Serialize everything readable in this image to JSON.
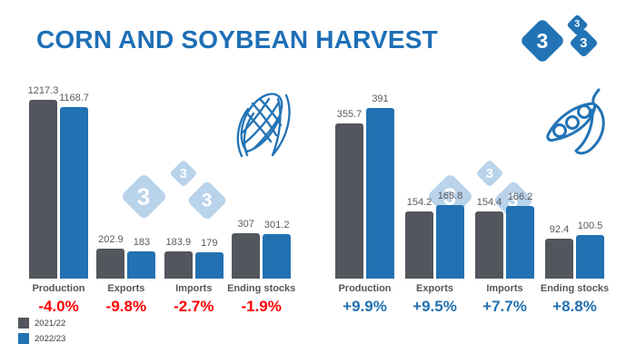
{
  "header": {
    "title": "CORN AND SOYBEAN HARVEST"
  },
  "logo": {
    "digit": "3",
    "color": "#2273B5"
  },
  "watermark": {
    "digit": "3",
    "color": "#B9D3EB"
  },
  "legend": {
    "items": [
      {
        "label": "2021/22",
        "color": "#53565C"
      },
      {
        "label": "2022/23",
        "color": "#2271B2"
      }
    ]
  },
  "chart_data": [
    {
      "id": "corn",
      "type": "bar",
      "icon": "corn-icon",
      "categories": [
        "Production",
        "Exports",
        "Imports",
        "Ending stocks"
      ],
      "series": [
        {
          "name": "2021/22",
          "color": "#53565C",
          "values": [
            1217.3,
            202.9,
            183.9,
            307
          ]
        },
        {
          "name": "2022/23",
          "color": "#2271B2",
          "values": [
            1168.7,
            183,
            179,
            301.2
          ]
        }
      ],
      "change_labels": [
        "-4.0%",
        "-9.8%",
        "-2.7%",
        "-1.9%"
      ],
      "change_color": "#FE0000",
      "ylim": [
        0,
        1217.3
      ],
      "grid": false,
      "legend_position": "bottom-left"
    },
    {
      "id": "soybean",
      "type": "bar",
      "icon": "soybean-icon",
      "categories": [
        "Production",
        "Exports",
        "Imports",
        "Ending stocks"
      ],
      "series": [
        {
          "name": "2021/22",
          "color": "#53565C",
          "values": [
            355.7,
            154.2,
            154.4,
            92.4
          ]
        },
        {
          "name": "2022/23",
          "color": "#2271B2",
          "values": [
            391,
            168.8,
            166.2,
            100.5
          ]
        }
      ],
      "change_labels": [
        "+9.9%",
        "+9.5%",
        "+7.7%",
        "+8.8%"
      ],
      "change_color": "#2271B2",
      "ylim": [
        0,
        391
      ],
      "grid": false,
      "legend_position": "bottom-left"
    }
  ]
}
